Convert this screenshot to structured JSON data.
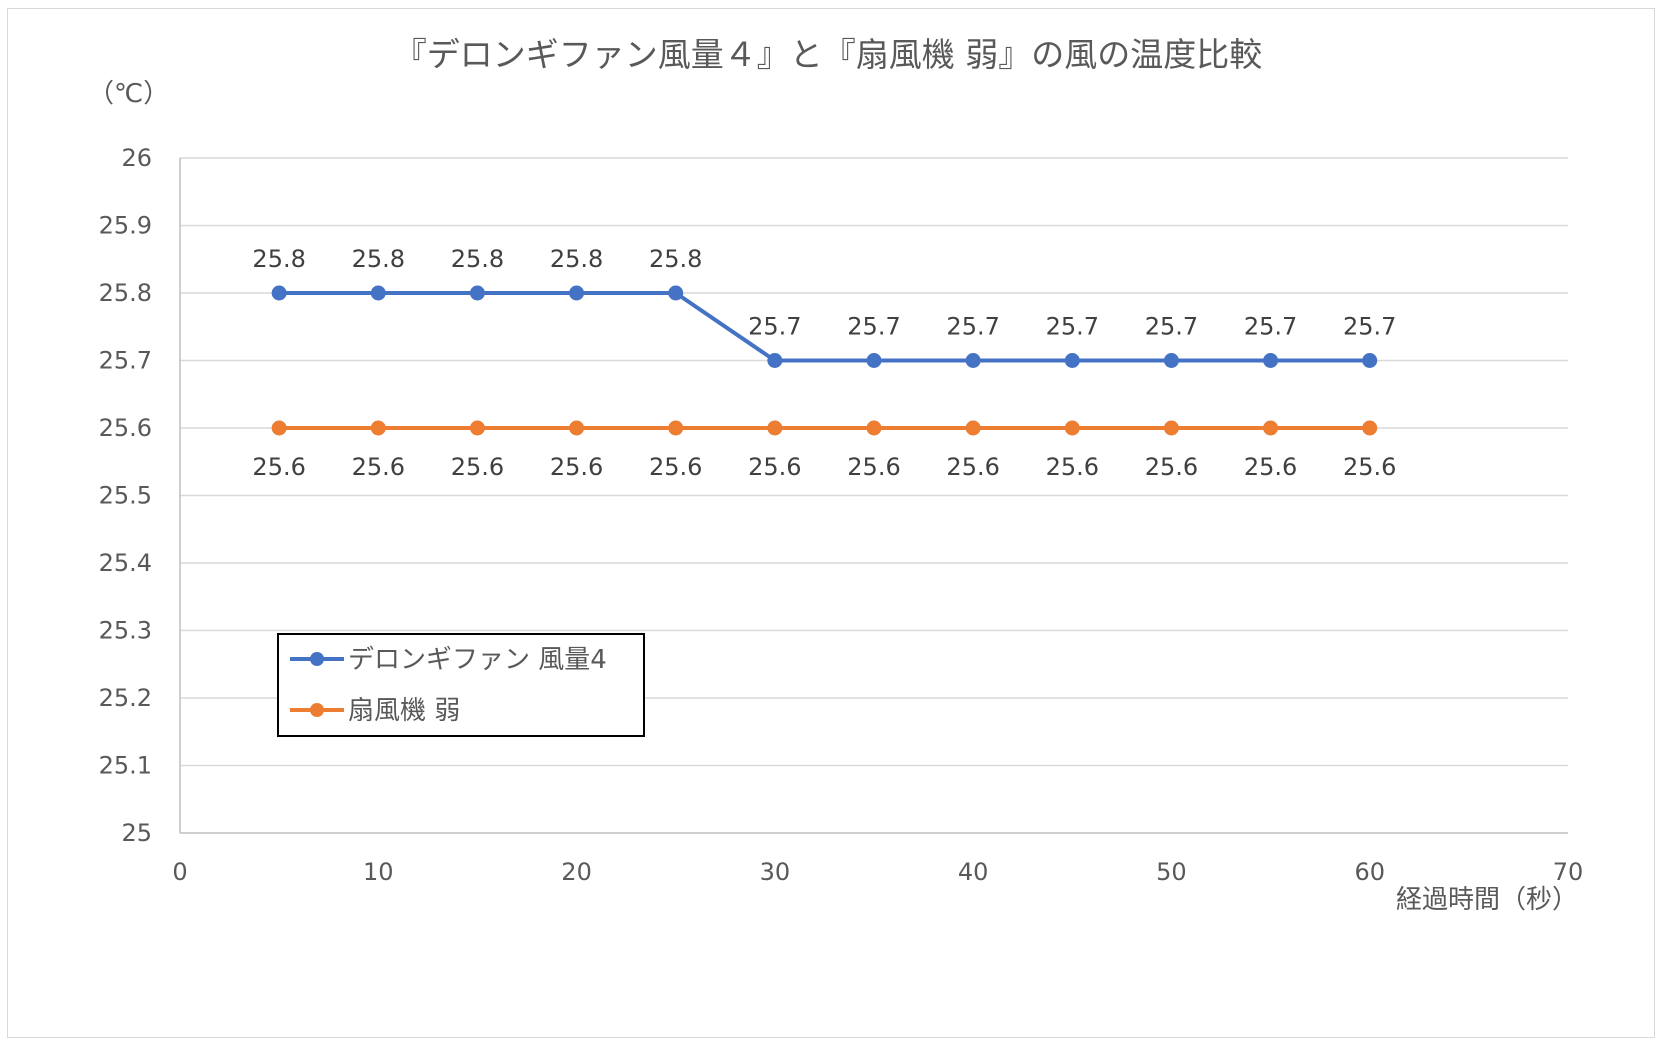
{
  "chart_data": {
    "type": "line",
    "title": "『デロンギファン風量４』と『扇風機 弱』の風の温度比較",
    "unit_label": "（℃）",
    "xlabel": "経過時間（秒）",
    "ylabel": "",
    "xlim": [
      0,
      70
    ],
    "ylim": [
      25,
      26
    ],
    "x_ticks": [
      "0",
      "10",
      "20",
      "30",
      "40",
      "50",
      "60",
      "70"
    ],
    "y_ticks": [
      "25",
      "25.1",
      "25.2",
      "25.3",
      "25.4",
      "25.5",
      "25.6",
      "25.7",
      "25.8",
      "25.9",
      "26"
    ],
    "grid": true,
    "legend_position": "bottom-left",
    "x": [
      5,
      10,
      15,
      20,
      25,
      30,
      35,
      40,
      45,
      50,
      55,
      60
    ],
    "series": [
      {
        "name": "デロンギファン 風量4",
        "color": "#4472c4",
        "values": [
          25.8,
          25.8,
          25.8,
          25.8,
          25.8,
          25.7,
          25.7,
          25.7,
          25.7,
          25.7,
          25.7,
          25.7
        ],
        "data_labels": [
          "25.8",
          "25.8",
          "25.8",
          "25.8",
          "25.8",
          "25.7",
          "25.7",
          "25.7",
          "25.7",
          "25.7",
          "25.7",
          "25.7"
        ],
        "label_position": "above"
      },
      {
        "name": "扇風機 弱",
        "color": "#ed7d31",
        "values": [
          25.6,
          25.6,
          25.6,
          25.6,
          25.6,
          25.6,
          25.6,
          25.6,
          25.6,
          25.6,
          25.6,
          25.6
        ],
        "data_labels": [
          "25.6",
          "25.6",
          "25.6",
          "25.6",
          "25.6",
          "25.6",
          "25.6",
          "25.6",
          "25.6",
          "25.6",
          "25.6",
          "25.6"
        ],
        "label_position": "below"
      }
    ]
  }
}
